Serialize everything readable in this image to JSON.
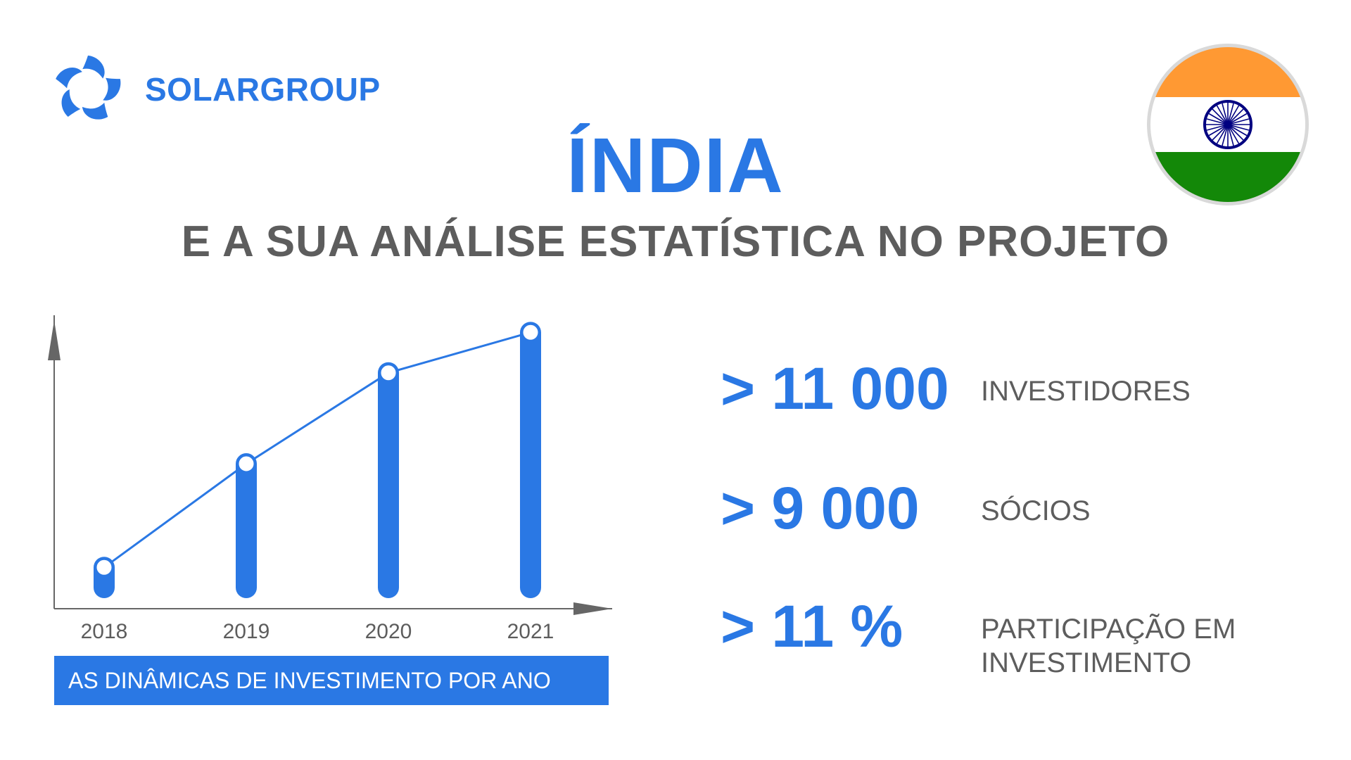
{
  "brand": {
    "name": "SOLARGROUP",
    "color": "#2a78e4",
    "logo_icon": "solar-swirl-icon"
  },
  "header": {
    "title": "ÍNDIA",
    "subtitle": "E A SUA ANÁLISE ESTATÍSTICA NO PROJETO"
  },
  "flag": {
    "icon": "india-flag-icon",
    "colors": {
      "saffron": "#ff9933",
      "white": "#ffffff",
      "green": "#138808",
      "chakra": "#000080"
    }
  },
  "chart_data": {
    "type": "bar",
    "categories": [
      "2018",
      "2019",
      "2020",
      "2021"
    ],
    "values": [
      8,
      49,
      85,
      101
    ],
    "ylim": [
      0,
      110
    ],
    "xlabel": "",
    "ylabel": "",
    "grid": false,
    "line_overlay": true,
    "caption": "AS DINÂMICAS DE INVESTIMENTO POR ANO",
    "bar_color": "#2a78e4"
  },
  "stats": [
    {
      "value": "> 11 000",
      "label": "INVESTIDORES"
    },
    {
      "value": "> 9 000",
      "label": "SÓCIOS"
    },
    {
      "value": "> 11 %",
      "label": "PARTICIPAÇÃO EM INVESTIMENTO"
    }
  ]
}
